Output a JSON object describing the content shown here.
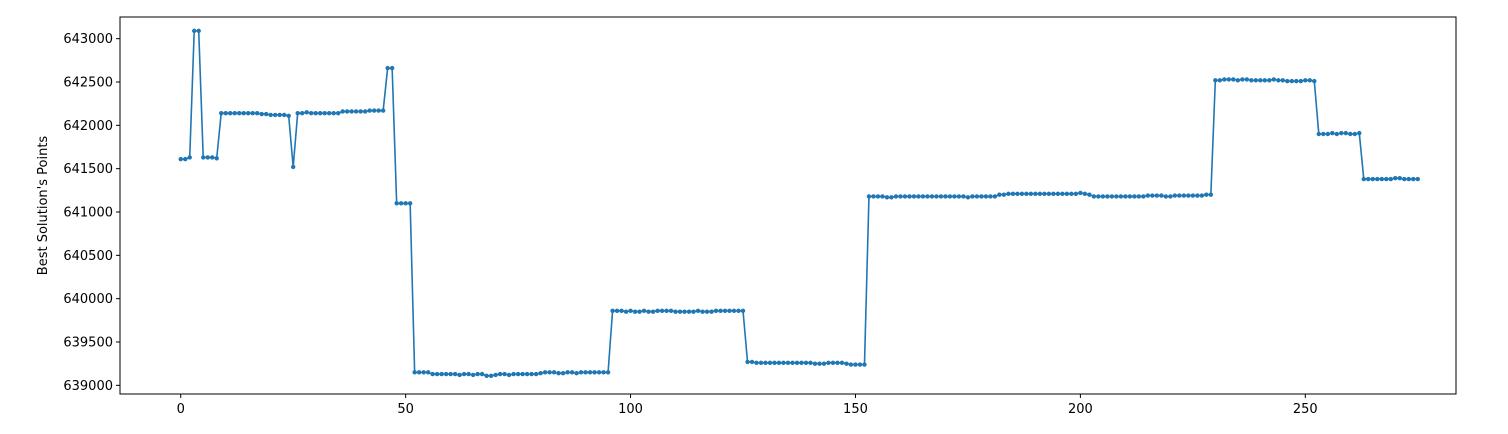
{
  "chart_data": {
    "type": "line",
    "title": "",
    "xlabel": "",
    "ylabel": "Best Solution's Points",
    "xlim": [
      -13.5,
      283.5
    ],
    "ylim": [
      638900,
      643250
    ],
    "xticks": [
      0,
      50,
      100,
      150,
      200,
      250
    ],
    "yticks": [
      639000,
      639500,
      640000,
      640500,
      641000,
      641500,
      642000,
      642500,
      643000
    ],
    "grid": false,
    "legend": "none",
    "markers": true,
    "color": "#1f77b4",
    "x_start": 0,
    "x_step": 1,
    "series": [
      {
        "name": "",
        "values": [
          641610,
          641610,
          641630,
          643090,
          643090,
          641630,
          641630,
          641630,
          641620,
          642140,
          642140,
          642140,
          642140,
          642140,
          642140,
          642140,
          642140,
          642140,
          642130,
          642130,
          642120,
          642120,
          642120,
          642120,
          642110,
          641520,
          642140,
          642140,
          642150,
          642140,
          642140,
          642140,
          642140,
          642140,
          642140,
          642140,
          642160,
          642160,
          642160,
          642160,
          642160,
          642160,
          642170,
          642170,
          642170,
          642170,
          642660,
          642660,
          641100,
          641100,
          641100,
          641100,
          639150,
          639150,
          639150,
          639150,
          639130,
          639130,
          639130,
          639130,
          639130,
          639130,
          639120,
          639130,
          639130,
          639120,
          639130,
          639130,
          639110,
          639110,
          639120,
          639130,
          639130,
          639120,
          639130,
          639130,
          639130,
          639130,
          639130,
          639130,
          639140,
          639150,
          639150,
          639150,
          639140,
          639140,
          639150,
          639150,
          639140,
          639150,
          639150,
          639150,
          639150,
          639150,
          639150,
          639150,
          639860,
          639860,
          639860,
          639850,
          639860,
          639850,
          639850,
          639860,
          639850,
          639850,
          639860,
          639860,
          639860,
          639860,
          639850,
          639850,
          639850,
          639850,
          639850,
          639860,
          639850,
          639850,
          639850,
          639860,
          639860,
          639860,
          639860,
          639860,
          639860,
          639860,
          639270,
          639270,
          639260,
          639260,
          639260,
          639260,
          639260,
          639260,
          639260,
          639260,
          639260,
          639260,
          639260,
          639260,
          639260,
          639250,
          639250,
          639250,
          639260,
          639260,
          639260,
          639260,
          639250,
          639240,
          639240,
          639240,
          639240,
          641180,
          641180,
          641180,
          641180,
          641170,
          641170,
          641180,
          641180,
          641180,
          641180,
          641180,
          641180,
          641180,
          641180,
          641180,
          641180,
          641180,
          641180,
          641180,
          641180,
          641180,
          641180,
          641170,
          641180,
          641180,
          641180,
          641180,
          641180,
          641180,
          641200,
          641200,
          641210,
          641210,
          641210,
          641210,
          641210,
          641210,
          641210,
          641210,
          641210,
          641210,
          641210,
          641210,
          641210,
          641210,
          641210,
          641210,
          641220,
          641210,
          641200,
          641180,
          641180,
          641180,
          641180,
          641180,
          641180,
          641180,
          641180,
          641180,
          641180,
          641180,
          641180,
          641190,
          641190,
          641190,
          641190,
          641180,
          641180,
          641190,
          641190,
          641190,
          641190,
          641190,
          641190,
          641190,
          641200,
          641200,
          642520,
          642520,
          642530,
          642530,
          642530,
          642520,
          642530,
          642530,
          642520,
          642520,
          642520,
          642520,
          642520,
          642530,
          642520,
          642520,
          642510,
          642510,
          642510,
          642510,
          642520,
          642520,
          642510,
          641900,
          641900,
          641900,
          641910,
          641900,
          641910,
          641910,
          641900,
          641900,
          641910,
          641380,
          641380,
          641380,
          641380,
          641380,
          641380,
          641380,
          641390,
          641390,
          641380,
          641380,
          641380,
          641380
        ]
      }
    ]
  }
}
